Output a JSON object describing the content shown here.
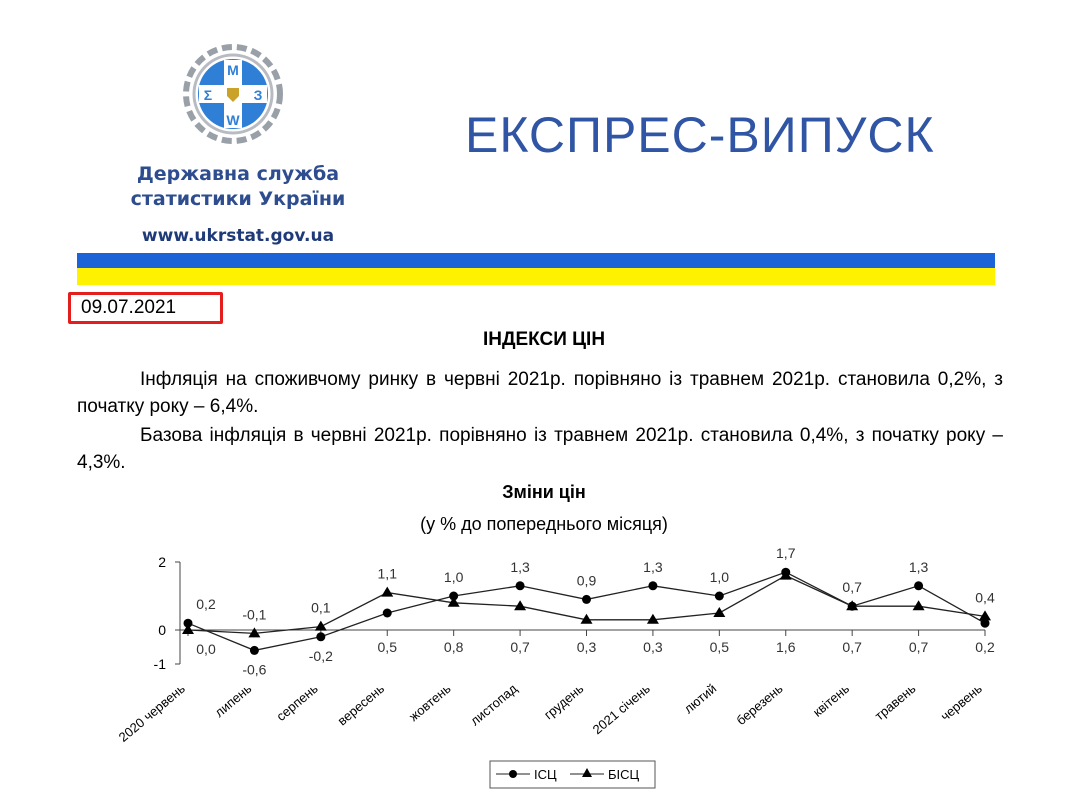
{
  "header": {
    "org_line1": "Державна служба",
    "org_line2": "статистики України",
    "website": "www.ukrstat.gov.ua",
    "headline": "ЕКСПРЕС-ВИПУСК",
    "logo_letters": "МΣЗW",
    "flag_colors": {
      "blue": "#1d63d8",
      "yellow": "#fff200"
    }
  },
  "date": "09.07.2021",
  "title": "ІНДЕКСИ ЦІН",
  "paragraphs": [
    "Інфляція на споживчому ринку в червні 2021р. порівняно із травнем 2021р. становила 0,2%, з початку року – 6,4%.",
    "Базова інфляція в червні 2021р. порівняно із травнем 2021р. становила 0,4%, з початку року – 4,3%."
  ],
  "chart_data": {
    "type": "line",
    "title": "Зміни цін",
    "subtitle": "(у % до попереднього місяця)",
    "categories": [
      "2020 червень",
      "липень",
      "серпень",
      "вересень",
      "жовтень",
      "листопад",
      "грудень",
      "2021 січень",
      "лютий",
      "березень",
      "квітень",
      "травень",
      "червень"
    ],
    "ylim": [
      -1,
      2
    ],
    "yticks": [
      -1,
      0,
      2
    ],
    "ytick_labels": [
      "-1",
      "0",
      "2"
    ],
    "legend_position": "bottom",
    "grid": false,
    "series": [
      {
        "name": "ІСЦ",
        "marker": "circle",
        "values": [
          0.2,
          -0.6,
          -0.2,
          0.5,
          1.0,
          1.3,
          0.9,
          1.3,
          1.0,
          1.7,
          0.7,
          1.3,
          0.2
        ],
        "labels": [
          "0,2",
          "-0,6",
          "-0,2",
          "0,5",
          "1,0",
          "1,3",
          "0,9",
          "1,3",
          "1,0",
          "1,7",
          "0,7",
          "1,3",
          "0,2"
        ]
      },
      {
        "name": "БІСЦ",
        "marker": "triangle",
        "values": [
          0.0,
          -0.1,
          0.1,
          1.1,
          0.8,
          0.7,
          0.3,
          0.3,
          0.5,
          1.6,
          0.7,
          0.7,
          0.4
        ],
        "labels": [
          "0,0",
          "-0,1",
          "0,1",
          "1,1",
          "0,8",
          "0,7",
          "0,3",
          "0,3",
          "0,5",
          "1,6",
          "0,7",
          "0,7",
          "0,4"
        ]
      }
    ]
  }
}
